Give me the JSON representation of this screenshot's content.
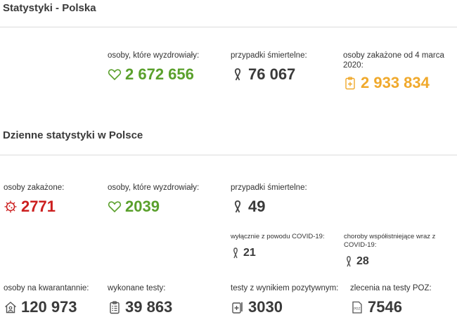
{
  "sections": {
    "poland_title": "Statystyki - Polska",
    "daily_title": "Dzienne statystyki w Polsce"
  },
  "total": {
    "recovered": {
      "label": "osoby, które wyzdrowiały:",
      "value": "2 672 656",
      "icon": "heart-icon"
    },
    "deaths": {
      "label": "przypadki śmiertelne:",
      "value": "76 067",
      "icon": "ribbon-icon"
    },
    "infected": {
      "label": "osoby zakażone od 4 marca 2020:",
      "value": "2 933 834",
      "icon": "clipboard-icon"
    }
  },
  "daily": {
    "infected": {
      "label": "osoby zakażone:",
      "value": "2771",
      "icon": "virus-icon"
    },
    "recovered": {
      "label": "osoby, które wyzdrowiały:",
      "value": "2039",
      "icon": "heart-icon"
    },
    "deaths": {
      "label": "przypadki śmiertelne:",
      "value": "49",
      "icon": "ribbon-icon"
    },
    "covid_only": {
      "label": "wyłącznie z powodu COVID-19:",
      "value": "21",
      "icon": "ribbon-icon"
    },
    "comorbid": {
      "label": "choroby współistniejące wraz z COVID-19:",
      "value": "28",
      "icon": "ribbon-icon"
    },
    "quarantine": {
      "label": "osoby na kwarantannie:",
      "value": "120 973",
      "icon": "house-icon"
    },
    "tests": {
      "label": "wykonane testy:",
      "value": "39 863",
      "icon": "clipboard-list-icon"
    },
    "positive_tests": {
      "label": "testy z wynikiem pozytywnym:",
      "value": "3030",
      "icon": "test-tube-icon"
    },
    "poz_orders": {
      "label": "zlecenia na testy POZ:",
      "value": "7546",
      "icon": "poz-document-icon"
    }
  },
  "colors": {
    "green": "#5aa02c",
    "red": "#cc1f1f",
    "orange": "#f0a92c",
    "dark": "#3a3a3a"
  }
}
